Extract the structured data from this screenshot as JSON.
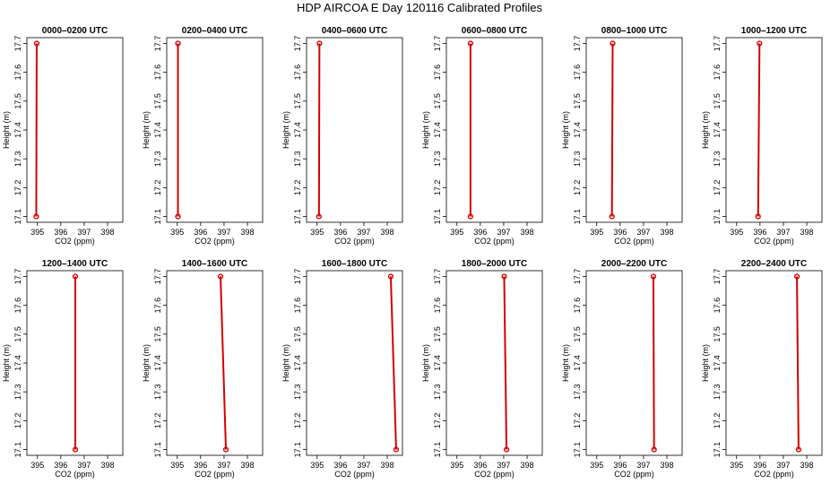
{
  "title": "HDP AIRCOA E  Day 120116  Calibrated Profiles",
  "colors": {
    "profile": "#d40000",
    "axis": "#000000"
  },
  "axes": {
    "xlabel": "CO2 (ppm)",
    "ylabel": "Height (m)",
    "xlim": [
      394.55,
      398.65
    ],
    "ylim": [
      17.08,
      17.72
    ],
    "xticks": [
      395,
      396,
      397,
      398
    ],
    "xtick_labels": [
      "395",
      "396",
      "397",
      "398"
    ],
    "yticks": [
      17.1,
      17.2,
      17.3,
      17.4,
      17.5,
      17.6,
      17.7
    ],
    "ytick_labels": [
      "17.1",
      "17.2",
      "17.3",
      "17.4",
      "17.5",
      "17.6",
      "17.7"
    ]
  },
  "chart_data": [
    {
      "type": "line",
      "title": "0000–0200 UTC",
      "points": [
        {
          "x": 394.95,
          "y": 17.1
        },
        {
          "x": 394.97,
          "y": 17.7
        }
      ]
    },
    {
      "type": "line",
      "title": "0200–0400 UTC",
      "points": [
        {
          "x": 395.03,
          "y": 17.1
        },
        {
          "x": 395.03,
          "y": 17.7
        }
      ]
    },
    {
      "type": "line",
      "title": "0400–0600 UTC",
      "points": [
        {
          "x": 395.08,
          "y": 17.1
        },
        {
          "x": 395.1,
          "y": 17.7
        }
      ]
    },
    {
      "type": "line",
      "title": "0600–0800 UTC",
      "points": [
        {
          "x": 395.58,
          "y": 17.1
        },
        {
          "x": 395.58,
          "y": 17.7
        }
      ]
    },
    {
      "type": "line",
      "title": "0800–1000 UTC",
      "points": [
        {
          "x": 395.65,
          "y": 17.1
        },
        {
          "x": 395.68,
          "y": 17.7
        }
      ]
    },
    {
      "type": "line",
      "title": "1000–1200 UTC",
      "points": [
        {
          "x": 395.92,
          "y": 17.1
        },
        {
          "x": 395.98,
          "y": 17.7
        }
      ]
    },
    {
      "type": "line",
      "title": "1200–1400 UTC",
      "points": [
        {
          "x": 396.62,
          "y": 17.1
        },
        {
          "x": 396.62,
          "y": 17.7
        }
      ]
    },
    {
      "type": "line",
      "title": "1400–1600 UTC",
      "points": [
        {
          "x": 397.08,
          "y": 17.1
        },
        {
          "x": 396.85,
          "y": 17.7
        }
      ]
    },
    {
      "type": "line",
      "title": "1600–1800 UTC",
      "points": [
        {
          "x": 398.38,
          "y": 17.1
        },
        {
          "x": 398.15,
          "y": 17.7
        }
      ]
    },
    {
      "type": "line",
      "title": "1800–2000 UTC",
      "points": [
        {
          "x": 397.12,
          "y": 17.1
        },
        {
          "x": 397.02,
          "y": 17.7
        }
      ]
    },
    {
      "type": "line",
      "title": "2000–2200 UTC",
      "points": [
        {
          "x": 397.45,
          "y": 17.1
        },
        {
          "x": 397.42,
          "y": 17.7
        }
      ]
    },
    {
      "type": "line",
      "title": "2200–2400 UTC",
      "points": [
        {
          "x": 397.65,
          "y": 17.1
        },
        {
          "x": 397.58,
          "y": 17.7
        }
      ]
    }
  ]
}
